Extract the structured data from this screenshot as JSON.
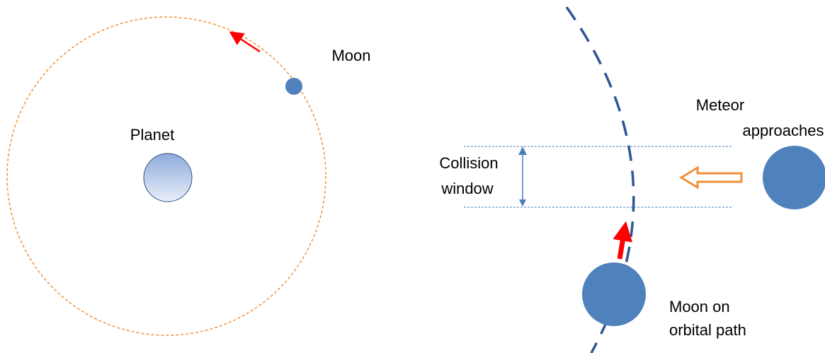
{
  "left": {
    "planet_label": "Planet",
    "moon_label": "Moon"
  },
  "right": {
    "meteor_label": [
      "Meteor",
      "approaches"
    ],
    "window_label": [
      "Collision",
      "window"
    ],
    "moon_label": [
      "Moon on",
      "orbital path"
    ]
  }
}
